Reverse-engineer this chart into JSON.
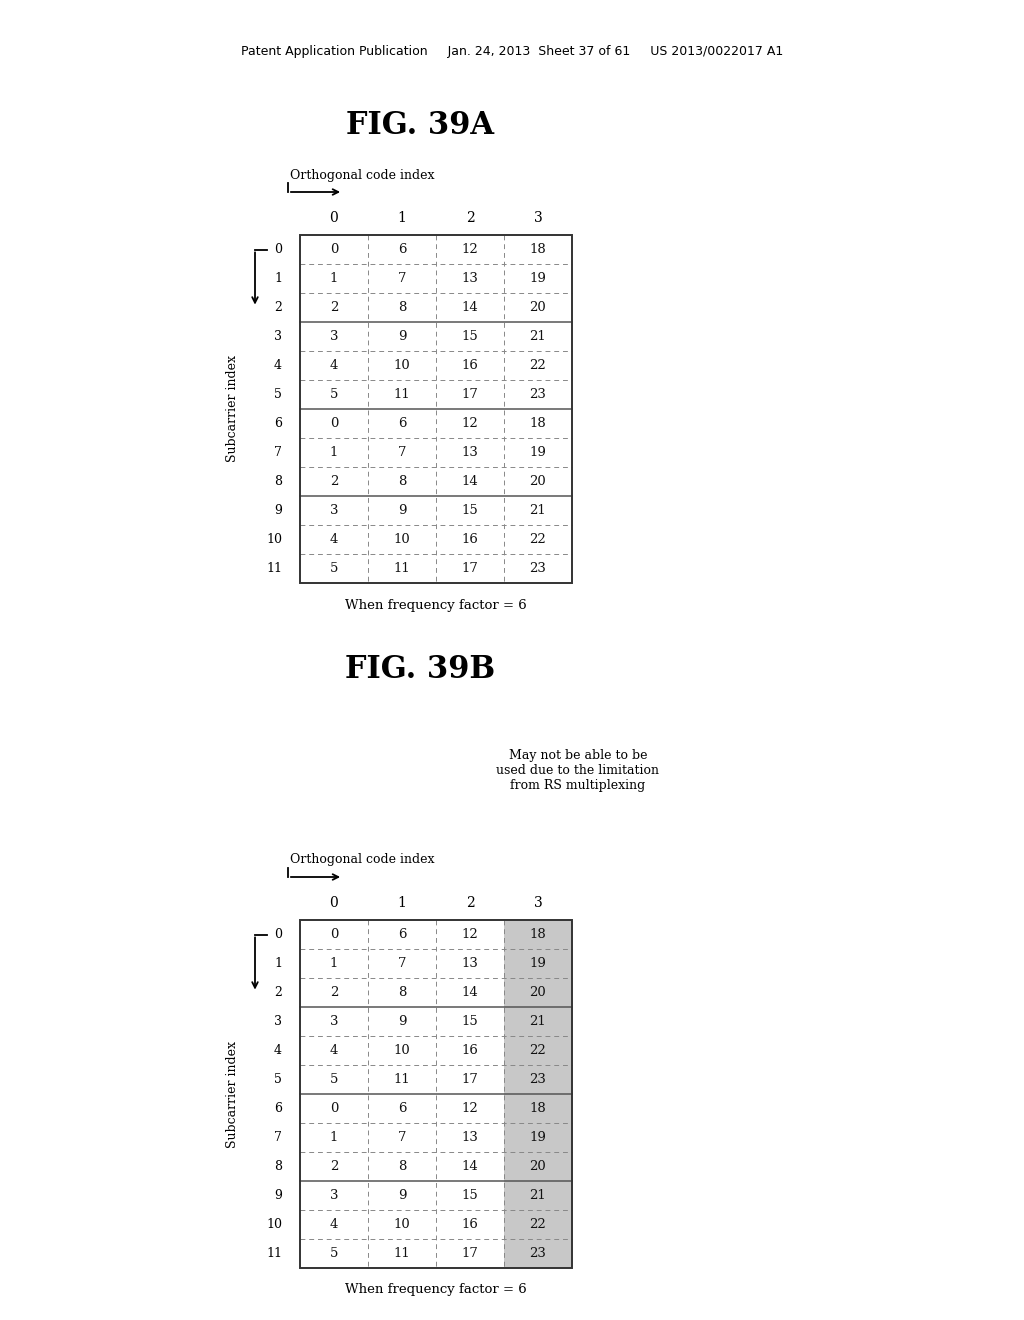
{
  "header_text": "Patent Application Publication     Jan. 24, 2013  Sheet 37 of 61     US 2013/0022017 A1",
  "fig_a_title": "FIG. 39A",
  "fig_b_title": "FIG. 39B",
  "orth_label": "Orthogonal code index",
  "sub_label": "Subcarrier index",
  "freq_label": "When frequency factor = 6",
  "col_headers": [
    "0",
    "1",
    "2",
    "3"
  ],
  "row_headers": [
    "0",
    "1",
    "2",
    "3",
    "4",
    "5",
    "6",
    "7",
    "8",
    "9",
    "10",
    "11"
  ],
  "table_a": [
    [
      0,
      6,
      12,
      18
    ],
    [
      1,
      7,
      13,
      19
    ],
    [
      2,
      8,
      14,
      20
    ],
    [
      3,
      9,
      15,
      21
    ],
    [
      4,
      10,
      16,
      22
    ],
    [
      5,
      11,
      17,
      23
    ],
    [
      0,
      6,
      12,
      18
    ],
    [
      1,
      7,
      13,
      19
    ],
    [
      2,
      8,
      14,
      20
    ],
    [
      3,
      9,
      15,
      21
    ],
    [
      4,
      10,
      16,
      22
    ],
    [
      5,
      11,
      17,
      23
    ]
  ],
  "table_b": [
    [
      0,
      6,
      12,
      18
    ],
    [
      1,
      7,
      13,
      19
    ],
    [
      2,
      8,
      14,
      20
    ],
    [
      3,
      9,
      15,
      21
    ],
    [
      4,
      10,
      16,
      22
    ],
    [
      5,
      11,
      17,
      23
    ],
    [
      0,
      6,
      12,
      18
    ],
    [
      1,
      7,
      13,
      19
    ],
    [
      2,
      8,
      14,
      20
    ],
    [
      3,
      9,
      15,
      21
    ],
    [
      4,
      10,
      16,
      22
    ],
    [
      5,
      11,
      17,
      23
    ]
  ],
  "shaded_col_b": 3,
  "annotation_b": "May not be able to be\nused due to the limitation\nfrom RS multiplexing",
  "bg_color": "#ffffff",
  "text_color": "#000000",
  "shade_color": "#c8c8c8",
  "border_solid": "#333333",
  "border_dashed": "#777777"
}
